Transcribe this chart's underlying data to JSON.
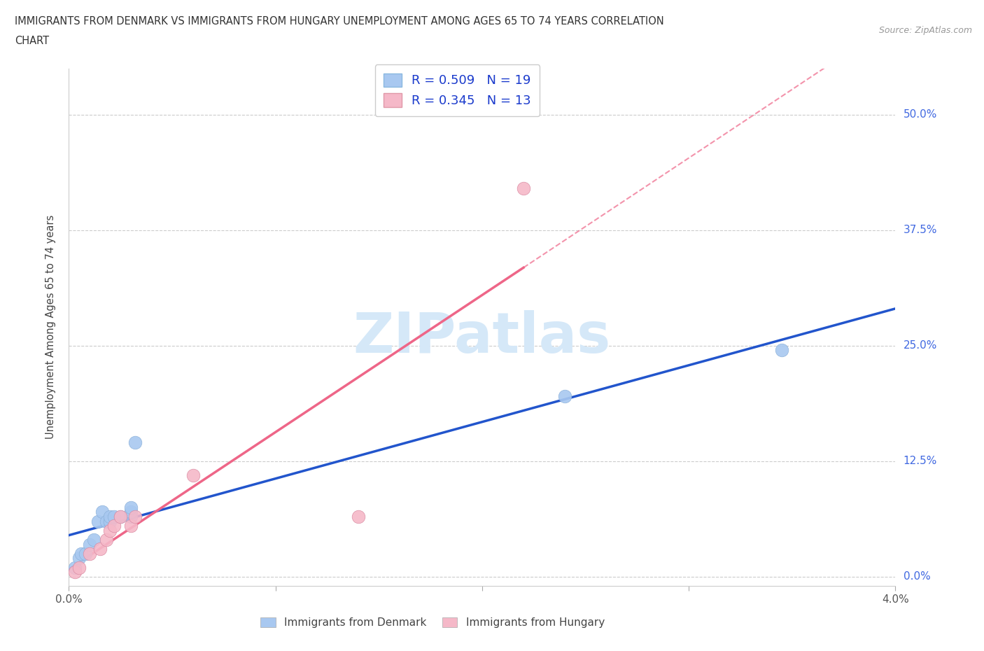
{
  "title_line1": "IMMIGRANTS FROM DENMARK VS IMMIGRANTS FROM HUNGARY UNEMPLOYMENT AMONG AGES 65 TO 74 YEARS CORRELATION",
  "title_line2": "CHART",
  "source": "Source: ZipAtlas.com",
  "ylabel": "Unemployment Among Ages 65 to 74 years",
  "xlim": [
    0.0,
    0.04
  ],
  "ylim": [
    -0.01,
    0.55
  ],
  "xticks": [
    0.0,
    0.01,
    0.02,
    0.03,
    0.04
  ],
  "ytick_labels": [
    "0.0%",
    "12.5%",
    "25.0%",
    "37.5%",
    "50.0%"
  ],
  "ytick_vals": [
    0.0,
    0.125,
    0.25,
    0.375,
    0.5
  ],
  "xtick_labels_bottom": [
    "0.0%",
    "",
    "",
    "",
    "4.0%"
  ],
  "denmark_color": "#a8c8f0",
  "hungary_color": "#f5b8c8",
  "denmark_line_color": "#2255cc",
  "hungary_line_color": "#ee6688",
  "denmark_R": 0.509,
  "denmark_N": 19,
  "hungary_R": 0.345,
  "hungary_N": 13,
  "watermark_color": "#d5e8f8",
  "denmark_x": [
    0.0003,
    0.0005,
    0.0006,
    0.0008,
    0.001,
    0.0012,
    0.0014,
    0.0016,
    0.0018,
    0.002,
    0.002,
    0.0022,
    0.0025,
    0.003,
    0.003,
    0.003,
    0.0032,
    0.024,
    0.0345
  ],
  "denmark_y": [
    0.01,
    0.02,
    0.025,
    0.025,
    0.035,
    0.04,
    0.06,
    0.07,
    0.06,
    0.06,
    0.065,
    0.065,
    0.065,
    0.065,
    0.07,
    0.075,
    0.145,
    0.195,
    0.245
  ],
  "hungary_x": [
    0.0003,
    0.0005,
    0.001,
    0.0015,
    0.0018,
    0.002,
    0.0022,
    0.0025,
    0.003,
    0.0032,
    0.006,
    0.014,
    0.022
  ],
  "hungary_y": [
    0.005,
    0.01,
    0.025,
    0.03,
    0.04,
    0.05,
    0.055,
    0.065,
    0.055,
    0.065,
    0.11,
    0.065,
    0.42
  ]
}
